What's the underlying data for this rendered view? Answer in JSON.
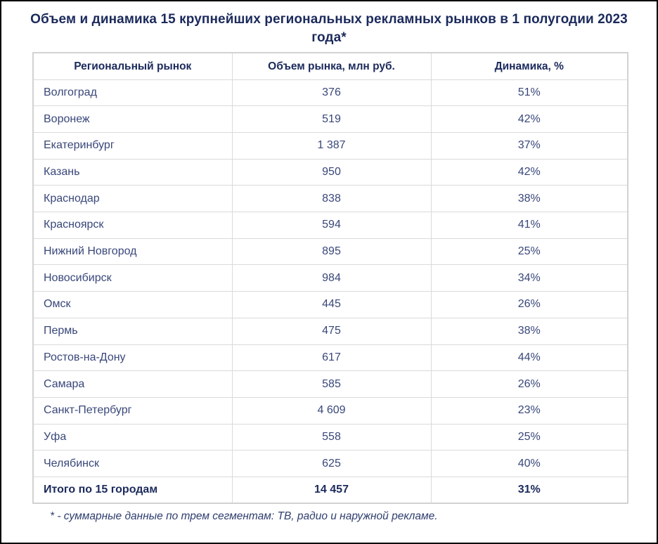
{
  "title": "Объем и динамика 15 крупнейших региональных рекламных рынков в 1 полугодии 2023 года*",
  "footnote": "* - суммарные данные по трем сегментам: ТВ, радио и наружной рекламе.",
  "table": {
    "headers": [
      "Региональный рынок",
      "Объем рынка, млн руб.",
      "Динамика, %"
    ],
    "rows": [
      {
        "market": "Волгоград",
        "volume": "376",
        "dynamics": "51%"
      },
      {
        "market": "Воронеж",
        "volume": "519",
        "dynamics": "42%"
      },
      {
        "market": "Екатеринбург",
        "volume": "1 387",
        "dynamics": "37%"
      },
      {
        "market": "Казань",
        "volume": "950",
        "dynamics": "42%"
      },
      {
        "market": "Краснодар",
        "volume": "838",
        "dynamics": "38%"
      },
      {
        "market": "Красноярск",
        "volume": "594",
        "dynamics": "41%"
      },
      {
        "market": "Нижний Новгород",
        "volume": "895",
        "dynamics": "25%"
      },
      {
        "market": "Новосибирск",
        "volume": "984",
        "dynamics": "34%"
      },
      {
        "market": "Омск",
        "volume": "445",
        "dynamics": "26%"
      },
      {
        "market": "Пермь",
        "volume": "475",
        "dynamics": "38%"
      },
      {
        "market": "Ростов-на-Дону",
        "volume": "617",
        "dynamics": "44%"
      },
      {
        "market": "Самара",
        "volume": "585",
        "dynamics": "26%"
      },
      {
        "market": "Санкт-Петербург",
        "volume": "4 609",
        "dynamics": "23%"
      },
      {
        "market": "Уфа",
        "volume": "558",
        "dynamics": "25%"
      },
      {
        "market": "Челябинск",
        "volume": "625",
        "dynamics": "40%"
      }
    ],
    "total": {
      "market": "Итого по 15 городам",
      "volume": "14 457",
      "dynamics": "31%"
    }
  },
  "colors": {
    "heading_text": "#1b2a5c",
    "body_text": "#39477a",
    "table_border": "#dadada",
    "frame_border": "#000000",
    "background": "#ffffff"
  },
  "chart_data": {
    "type": "table",
    "title": "Объем и динамика 15 крупнейших региональных рекламных рынков в 1 полугодии 2023 года*",
    "columns": [
      "Региональный рынок",
      "Объем рынка, млн руб.",
      "Динамика, %"
    ],
    "rows": [
      [
        "Волгоград",
        376,
        "51%"
      ],
      [
        "Воронеж",
        519,
        "42%"
      ],
      [
        "Екатеринбург",
        1387,
        "37%"
      ],
      [
        "Казань",
        950,
        "42%"
      ],
      [
        "Краснодар",
        838,
        "38%"
      ],
      [
        "Красноярск",
        594,
        "41%"
      ],
      [
        "Нижний Новгород",
        895,
        "25%"
      ],
      [
        "Новосибирск",
        984,
        "34%"
      ],
      [
        "Омск",
        445,
        "26%"
      ],
      [
        "Пермь",
        475,
        "38%"
      ],
      [
        "Ростов-на-Дону",
        617,
        "44%"
      ],
      [
        "Самара",
        585,
        "26%"
      ],
      [
        "Санкт-Петербург",
        4609,
        "23%"
      ],
      [
        "Уфа",
        558,
        "25%"
      ],
      [
        "Челябинск",
        625,
        "40%"
      ]
    ],
    "total_row": [
      "Итого по 15 городам",
      14457,
      "31%"
    ],
    "footnote": "* - суммарные данные по трем сегментам: ТВ, радио и наружной рекламе."
  }
}
